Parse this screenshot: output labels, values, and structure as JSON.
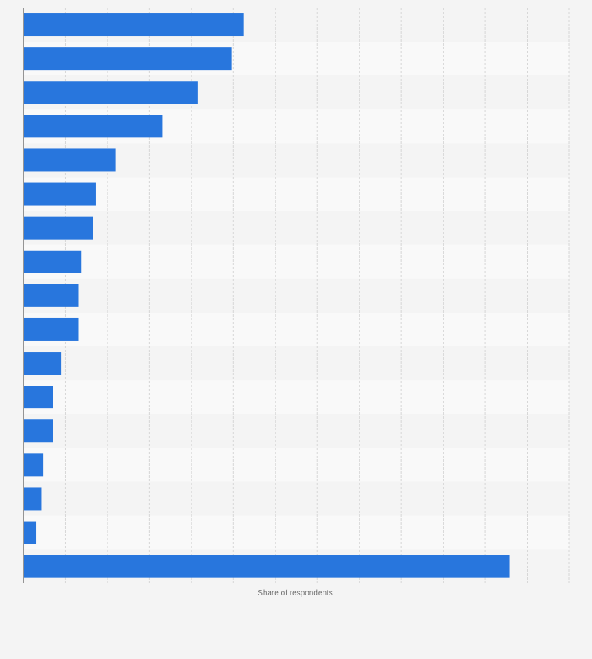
{
  "chart_data": {
    "type": "bar",
    "orientation": "horizontal",
    "xlabel": "Share of respondents",
    "ylabel": "",
    "xlim": [
      0,
      13
    ],
    "grid": true,
    "bar_color": "#2876dd",
    "band_colors": [
      "#f4f4f4",
      "#f9f9f9"
    ],
    "values": [
      5.25,
      4.95,
      4.15,
      3.3,
      2.2,
      1.72,
      1.65,
      1.37,
      1.3,
      1.3,
      0.9,
      0.7,
      0.7,
      0.47,
      0.42,
      0.3,
      11.57
    ]
  }
}
